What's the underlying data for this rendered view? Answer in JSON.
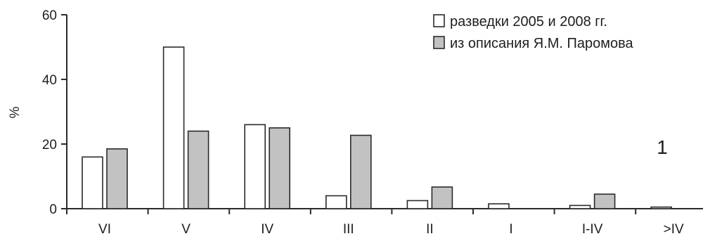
{
  "chart_data": {
    "type": "bar",
    "title": "",
    "xlabel": "",
    "ylabel": "%",
    "ylim": [
      0,
      60
    ],
    "yticks": [
      0,
      20,
      40,
      60
    ],
    "categories": [
      "VI",
      "V",
      "IV",
      "III",
      "II",
      "I",
      "I-IV",
      ">IV"
    ],
    "series": [
      {
        "name": "разведки 2005 и 2008 гг.",
        "color": "#ffffff",
        "values": [
          16,
          50,
          26,
          4,
          2.5,
          1.5,
          1,
          0.5
        ]
      },
      {
        "name": "из описания Я.М. Паромова",
        "color": "#c2c2c2",
        "values": [
          18.5,
          24,
          25,
          22.7,
          6.7,
          0,
          4.5,
          0
        ]
      }
    ],
    "annotations": [
      {
        "text": "1"
      }
    ],
    "legend": "top-right",
    "grid": false
  }
}
